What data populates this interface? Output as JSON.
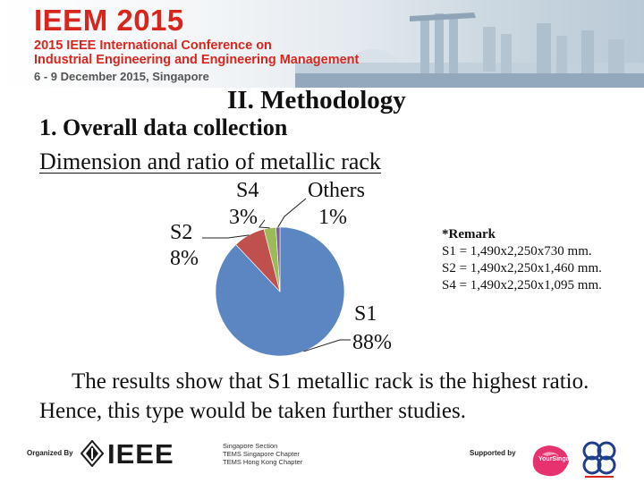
{
  "header": {
    "title": "IEEM 2015",
    "line1": "2015 IEEE International Conference on",
    "line2": "Industrial Engineering and Engineering Management",
    "date": "6 - 9 December 2015, Singapore"
  },
  "slide": {
    "section_title": "II. Methodology",
    "subtitle": "1. Overall data collection",
    "chart_heading": "Dimension and ratio of metallic rack",
    "remark": {
      "title": "*Remark",
      "lines": [
        "S1 = 1,490x2,250x730 mm.",
        "S2 = 1,490x2,250x1,460 mm.",
        "S4 = 1,490x2,250x1,095 mm."
      ]
    },
    "conclusion": "The results show that S1 metallic rack is the highest ratio. Hence, this type would be taken further studies."
  },
  "chart_data": {
    "type": "pie",
    "title": "Dimension and ratio of metallic rack",
    "slices": [
      {
        "label": "S1",
        "value": 88,
        "display": "88%",
        "color": "#5b86c1"
      },
      {
        "label": "S2",
        "value": 8,
        "display": "8%",
        "color": "#c0504d"
      },
      {
        "label": "S4",
        "value": 3,
        "display": "3%",
        "color": "#9bbb59"
      },
      {
        "label": "Others",
        "value": 1,
        "display": "1%",
        "color": "#7a5f99"
      }
    ],
    "legend": "none (labels beside slices)"
  },
  "footer": {
    "organized_by": "Organized By",
    "org_name": "IEEE",
    "org_lines": [
      "Singapore Section",
      "TEMS Singapore Chapter",
      "TEMS Hong Kong Chapter"
    ],
    "supported_by": "Supported by",
    "sponsor": "YourSingapore"
  },
  "colors": {
    "header_red": "#d8261e",
    "pie_blue": "#5b86c1",
    "pie_red": "#c0504d",
    "pie_green": "#9bbb59",
    "pie_purple": "#7a5f99"
  }
}
